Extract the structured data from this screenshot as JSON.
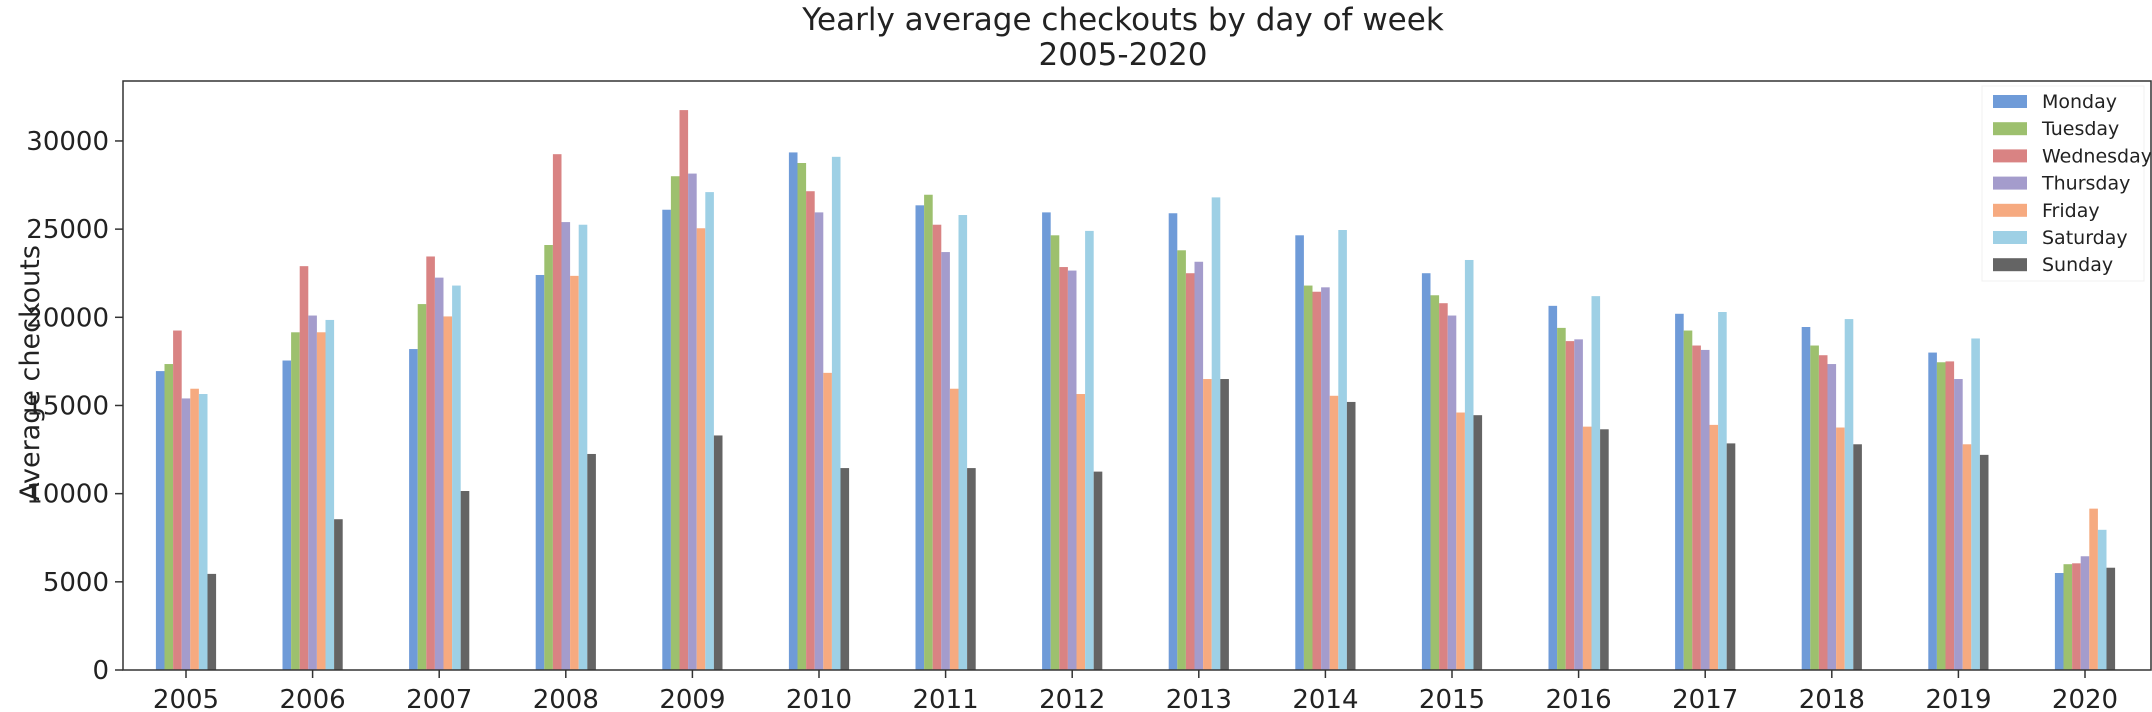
{
  "chart_data": {
    "type": "bar",
    "title": "Yearly average checkouts by day of week",
    "subtitle": "2005-2020",
    "xlabel": "",
    "ylabel": "Average checkouts",
    "ylim": [
      0,
      33400
    ],
    "yticks": [
      0,
      5000,
      10000,
      15000,
      20000,
      25000,
      30000
    ],
    "grid": false,
    "legend_position": "top-right",
    "categories": [
      "2005",
      "2006",
      "2007",
      "2008",
      "2009",
      "2010",
      "2011",
      "2012",
      "2013",
      "2014",
      "2015",
      "2016",
      "2017",
      "2018",
      "2019",
      "2020"
    ],
    "series": [
      {
        "name": "Monday",
        "color": "#6f9bd8",
        "values": [
          16950,
          17550,
          18200,
          22400,
          26100,
          29350,
          26350,
          25950,
          25900,
          24650,
          22500,
          20650,
          20200,
          19450,
          18000,
          5500
        ]
      },
      {
        "name": "Tuesday",
        "color": "#9dc06e",
        "values": [
          17350,
          19150,
          20750,
          24100,
          28000,
          28750,
          26950,
          24650,
          23800,
          21800,
          21250,
          19400,
          19250,
          18400,
          17450,
          6000
        ]
      },
      {
        "name": "Wednesday",
        "color": "#d98383",
        "values": [
          19250,
          22900,
          23450,
          29250,
          31750,
          27150,
          25250,
          22850,
          22500,
          21450,
          20800,
          18650,
          18400,
          17850,
          17500,
          6050
        ]
      },
      {
        "name": "Thursday",
        "color": "#a49ccc",
        "values": [
          15400,
          20100,
          22250,
          25400,
          28150,
          25950,
          23700,
          22650,
          23150,
          21700,
          20100,
          18750,
          18150,
          17350,
          16500,
          6450
        ]
      },
      {
        "name": "Friday",
        "color": "#f6aa80",
        "values": [
          15950,
          19150,
          20050,
          22350,
          25050,
          16850,
          15950,
          15650,
          16500,
          15550,
          14600,
          13800,
          13900,
          13750,
          12800,
          9150
        ]
      },
      {
        "name": "Saturday",
        "color": "#9ed0e5",
        "values": [
          15650,
          19850,
          21800,
          25250,
          27100,
          29100,
          25800,
          24900,
          26800,
          24950,
          23250,
          21200,
          20300,
          19900,
          18800,
          7950
        ]
      },
      {
        "name": "Sunday",
        "color": "#646464",
        "values": [
          5450,
          8550,
          10150,
          12250,
          13300,
          11450,
          11450,
          11250,
          16500,
          15200,
          14450,
          13650,
          12850,
          12800,
          12200,
          5800
        ]
      }
    ]
  }
}
